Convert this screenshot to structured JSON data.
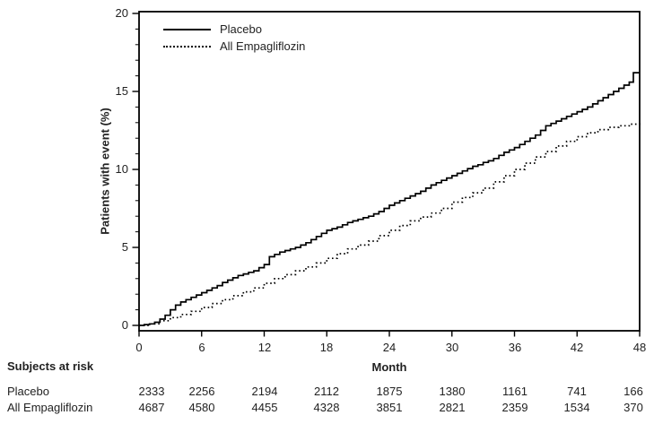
{
  "figure": {
    "background": "#ffffff",
    "line_color": "#000000",
    "text_color": "#222222"
  },
  "chart_data": {
    "type": "line",
    "subtype": "kaplan-meier-cumulative-incidence",
    "title": "",
    "xlabel": "Month",
    "ylabel": "Patients with event (%)",
    "xlim": [
      0,
      48
    ],
    "ylim": [
      0,
      20
    ],
    "x_ticks": [
      0,
      6,
      12,
      18,
      24,
      30,
      36,
      42,
      48
    ],
    "y_ticks": [
      0,
      5,
      10,
      15,
      20
    ],
    "y_minor_tick_step": 1,
    "grid": false,
    "legend_position": "top-left-inside",
    "series": [
      {
        "name": "Placebo",
        "style": "solid",
        "step": true,
        "points": [
          [
            0,
            0
          ],
          [
            0.5,
            0.05
          ],
          [
            1,
            0.1
          ],
          [
            1.5,
            0.2
          ],
          [
            2,
            0.4
          ],
          [
            2.5,
            0.65
          ],
          [
            3,
            1.0
          ],
          [
            3.5,
            1.3
          ],
          [
            4,
            1.5
          ],
          [
            4.5,
            1.65
          ],
          [
            5,
            1.8
          ],
          [
            5.5,
            1.95
          ],
          [
            6,
            2.1
          ],
          [
            6.5,
            2.25
          ],
          [
            7,
            2.4
          ],
          [
            7.5,
            2.55
          ],
          [
            8,
            2.75
          ],
          [
            8.5,
            2.9
          ],
          [
            9,
            3.05
          ],
          [
            9.5,
            3.2
          ],
          [
            10,
            3.3
          ],
          [
            10.5,
            3.4
          ],
          [
            11,
            3.5
          ],
          [
            11.5,
            3.7
          ],
          [
            12,
            3.9
          ],
          [
            12.5,
            4.4
          ],
          [
            13,
            4.55
          ],
          [
            13.5,
            4.7
          ],
          [
            14,
            4.8
          ],
          [
            14.5,
            4.9
          ],
          [
            15,
            5.0
          ],
          [
            15.5,
            5.15
          ],
          [
            16,
            5.3
          ],
          [
            16.5,
            5.5
          ],
          [
            17,
            5.7
          ],
          [
            17.5,
            5.9
          ],
          [
            18,
            6.1
          ],
          [
            18.5,
            6.2
          ],
          [
            19,
            6.3
          ],
          [
            19.5,
            6.45
          ],
          [
            20,
            6.6
          ],
          [
            20.5,
            6.7
          ],
          [
            21,
            6.8
          ],
          [
            21.5,
            6.9
          ],
          [
            22,
            7.0
          ],
          [
            22.5,
            7.15
          ],
          [
            23,
            7.3
          ],
          [
            23.5,
            7.5
          ],
          [
            24,
            7.7
          ],
          [
            24.5,
            7.85
          ],
          [
            25,
            8.0
          ],
          [
            25.5,
            8.15
          ],
          [
            26,
            8.3
          ],
          [
            26.5,
            8.45
          ],
          [
            27,
            8.6
          ],
          [
            27.5,
            8.8
          ],
          [
            28,
            9.0
          ],
          [
            28.5,
            9.15
          ],
          [
            29,
            9.3
          ],
          [
            29.5,
            9.45
          ],
          [
            30,
            9.6
          ],
          [
            30.5,
            9.75
          ],
          [
            31,
            9.9
          ],
          [
            31.5,
            10.05
          ],
          [
            32,
            10.2
          ],
          [
            32.5,
            10.3
          ],
          [
            33,
            10.45
          ],
          [
            33.5,
            10.55
          ],
          [
            34,
            10.7
          ],
          [
            34.5,
            10.9
          ],
          [
            35,
            11.1
          ],
          [
            35.5,
            11.25
          ],
          [
            36,
            11.4
          ],
          [
            36.5,
            11.6
          ],
          [
            37,
            11.8
          ],
          [
            37.5,
            12.0
          ],
          [
            38,
            12.2
          ],
          [
            38.5,
            12.5
          ],
          [
            39,
            12.8
          ],
          [
            39.5,
            12.95
          ],
          [
            40,
            13.1
          ],
          [
            40.5,
            13.25
          ],
          [
            41,
            13.4
          ],
          [
            41.5,
            13.55
          ],
          [
            42,
            13.7
          ],
          [
            42.5,
            13.85
          ],
          [
            43,
            14.0
          ],
          [
            43.5,
            14.2
          ],
          [
            44,
            14.4
          ],
          [
            44.5,
            14.6
          ],
          [
            45,
            14.8
          ],
          [
            45.5,
            15.0
          ],
          [
            46,
            15.2
          ],
          [
            46.5,
            15.4
          ],
          [
            47,
            15.6
          ],
          [
            47.4,
            16.2
          ],
          [
            48,
            16.2
          ]
        ]
      },
      {
        "name": "All Empagliflozin",
        "style": "dotted",
        "step": true,
        "points": [
          [
            0,
            0
          ],
          [
            1,
            0.1
          ],
          [
            2,
            0.3
          ],
          [
            3,
            0.5
          ],
          [
            4,
            0.7
          ],
          [
            5,
            0.9
          ],
          [
            6,
            1.15
          ],
          [
            7,
            1.4
          ],
          [
            8,
            1.65
          ],
          [
            9,
            1.9
          ],
          [
            10,
            2.15
          ],
          [
            11,
            2.4
          ],
          [
            12,
            2.7
          ],
          [
            13,
            3.0
          ],
          [
            14,
            3.25
          ],
          [
            15,
            3.5
          ],
          [
            16,
            3.75
          ],
          [
            17,
            4.0
          ],
          [
            18,
            4.3
          ],
          [
            19,
            4.6
          ],
          [
            20,
            4.9
          ],
          [
            21,
            5.15
          ],
          [
            22,
            5.4
          ],
          [
            23,
            5.75
          ],
          [
            24,
            6.1
          ],
          [
            25,
            6.4
          ],
          [
            26,
            6.7
          ],
          [
            27,
            6.95
          ],
          [
            28,
            7.2
          ],
          [
            29,
            7.5
          ],
          [
            30,
            7.9
          ],
          [
            31,
            8.2
          ],
          [
            32,
            8.5
          ],
          [
            33,
            8.8
          ],
          [
            34,
            9.2
          ],
          [
            35,
            9.6
          ],
          [
            36,
            10.0
          ],
          [
            37,
            10.4
          ],
          [
            38,
            10.8
          ],
          [
            39,
            11.15
          ],
          [
            40,
            11.5
          ],
          [
            41,
            11.8
          ],
          [
            42,
            12.1
          ],
          [
            43,
            12.35
          ],
          [
            44,
            12.55
          ],
          [
            45,
            12.7
          ],
          [
            46,
            12.8
          ],
          [
            47,
            12.9
          ],
          [
            48,
            13.0
          ]
        ]
      }
    ]
  },
  "risk_table": {
    "header": "Subjects at risk",
    "months": [
      0,
      6,
      12,
      18,
      24,
      30,
      36,
      42,
      48
    ],
    "rows": [
      {
        "label": "Placebo",
        "values": [
          "2333",
          "2256",
          "2194",
          "2112",
          "1875",
          "1380",
          "1161",
          "741",
          "166"
        ]
      },
      {
        "label": "All Empagliflozin",
        "values": [
          "4687",
          "4580",
          "4455",
          "4328",
          "3851",
          "2821",
          "2359",
          "1534",
          "370"
        ]
      }
    ]
  }
}
